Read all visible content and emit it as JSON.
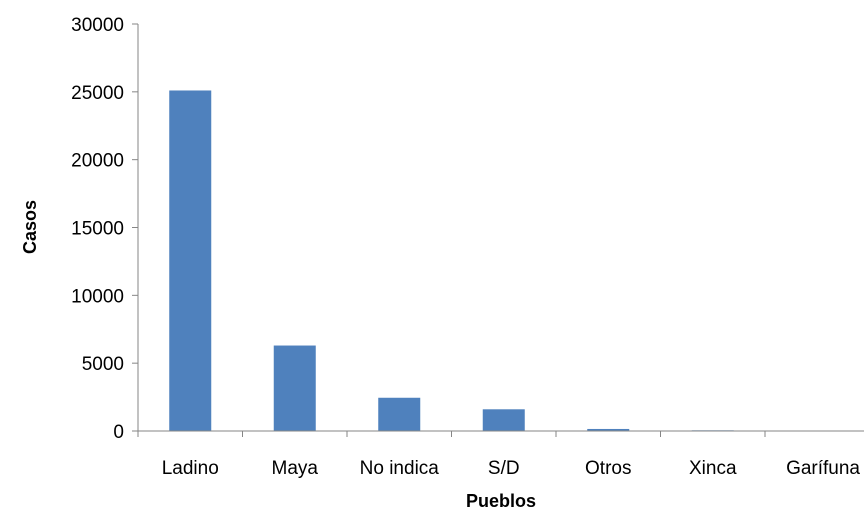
{
  "chart_data": {
    "type": "bar",
    "title": "",
    "xlabel": "Pueblos",
    "ylabel": "Casos",
    "categories": [
      "Ladino",
      "Maya",
      "No indica",
      "S/D",
      "Otros",
      "Xinca",
      "Garífuna"
    ],
    "values": [
      25100,
      6300,
      2450,
      1600,
      150,
      50,
      20
    ],
    "ylim": [
      0,
      30000
    ],
    "yticks": [
      "0",
      "5000",
      "10000",
      "15000",
      "20000",
      "25000",
      "30000"
    ],
    "grid": false,
    "legend": "none",
    "bar_color": "#4F81BD"
  }
}
